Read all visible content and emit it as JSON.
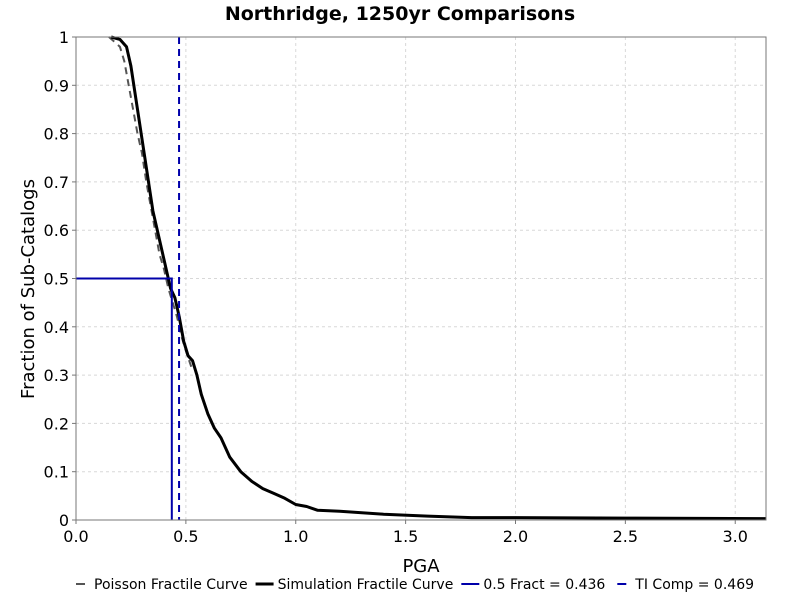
{
  "chart_data": {
    "type": "line",
    "title": "Northridge, 1250yr Comparisons",
    "xlabel": "PGA",
    "ylabel": "Fraction of Sub-Catalogs",
    "xlim": [
      0.0,
      3.14
    ],
    "ylim": [
      0.0,
      1.0
    ],
    "grid": true,
    "legend_position": "bottom",
    "xticks": [
      0.0,
      0.5,
      1.0,
      1.5,
      2.0,
      2.5,
      3.0
    ],
    "xtick_labels": [
      "0.0",
      "0.5",
      "1.0",
      "1.5",
      "2.0",
      "2.5",
      "3.0"
    ],
    "yticks": [
      0,
      0.1,
      0.2,
      0.3,
      0.4,
      0.5,
      0.6,
      0.7,
      0.8,
      0.9,
      1
    ],
    "ytick_labels": [
      "0",
      "0.1",
      "0.2",
      "0.3",
      "0.4",
      "0.5",
      "0.6",
      "0.7",
      "0.8",
      "0.9",
      "1"
    ],
    "series": [
      {
        "name": "Poisson Fractile Curve",
        "color": "#555555",
        "style": "dashed",
        "x": [
          0.15,
          0.2,
          0.22,
          0.24,
          0.26,
          0.28,
          0.3,
          0.32,
          0.34,
          0.36,
          0.38,
          0.4,
          0.42,
          0.44,
          0.46,
          0.48,
          0.5,
          0.53
        ],
        "y": [
          1.0,
          0.98,
          0.95,
          0.9,
          0.85,
          0.8,
          0.76,
          0.7,
          0.65,
          0.6,
          0.55,
          0.52,
          0.48,
          0.45,
          0.42,
          0.38,
          0.35,
          0.31
        ]
      },
      {
        "name": "Simulation Fractile Curve",
        "color": "#000000",
        "style": "solid",
        "x": [
          0.16,
          0.2,
          0.23,
          0.25,
          0.27,
          0.29,
          0.31,
          0.33,
          0.35,
          0.37,
          0.39,
          0.41,
          0.43,
          0.45,
          0.47,
          0.49,
          0.51,
          0.53,
          0.55,
          0.57,
          0.6,
          0.63,
          0.66,
          0.7,
          0.75,
          0.8,
          0.85,
          0.9,
          0.95,
          1.0,
          1.05,
          1.1,
          1.2,
          1.4,
          1.6,
          1.8,
          2.0,
          2.5,
          3.14
        ],
        "y": [
          1.0,
          0.995,
          0.98,
          0.94,
          0.88,
          0.82,
          0.76,
          0.7,
          0.64,
          0.6,
          0.56,
          0.52,
          0.48,
          0.46,
          0.42,
          0.37,
          0.34,
          0.33,
          0.3,
          0.26,
          0.22,
          0.19,
          0.17,
          0.13,
          0.1,
          0.08,
          0.065,
          0.055,
          0.045,
          0.032,
          0.028,
          0.02,
          0.018,
          0.012,
          0.008,
          0.005,
          0.005,
          0.004,
          0.003
        ]
      }
    ],
    "markers": [
      {
        "name": "0.5 Fract = 0.436",
        "color": "#0000aa",
        "style": "solid",
        "x": 0.436,
        "y": 0.5
      },
      {
        "name": "TI Comp = 0.469",
        "color": "#0000aa",
        "style": "dashed",
        "x": 0.469
      }
    ]
  }
}
